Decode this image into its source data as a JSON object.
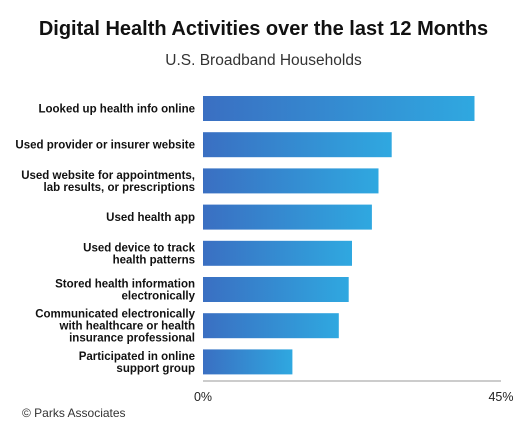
{
  "chart_data": {
    "type": "bar",
    "orientation": "horizontal",
    "title": "Digital Health Activities over the last 12 Months",
    "subtitle": "U.S. Broadband Households",
    "categories": [
      [
        "Looked up health info online"
      ],
      [
        "Used provider or insurer website"
      ],
      [
        "Used website for appointments,",
        "lab results, or prescriptions"
      ],
      [
        "Used health app"
      ],
      [
        "Used device to track",
        "health patterns"
      ],
      [
        "Stored health information",
        "electronically"
      ],
      [
        "Communicated electronically",
        "with healthcare or health",
        "insurance professional"
      ],
      [
        "Participated in online",
        "support group"
      ]
    ],
    "values": [
      41,
      28.5,
      26.5,
      25.5,
      22.5,
      22,
      20.5,
      13.5
    ],
    "xlim": [
      0,
      45
    ],
    "x_tick_labels": [
      "0%",
      "45%"
    ],
    "grid": false,
    "colors": {
      "bar_start": "#3a6fc2",
      "bar_end": "#2fa8e0",
      "axis": "#999999"
    }
  },
  "credit": "© Parks Associates"
}
